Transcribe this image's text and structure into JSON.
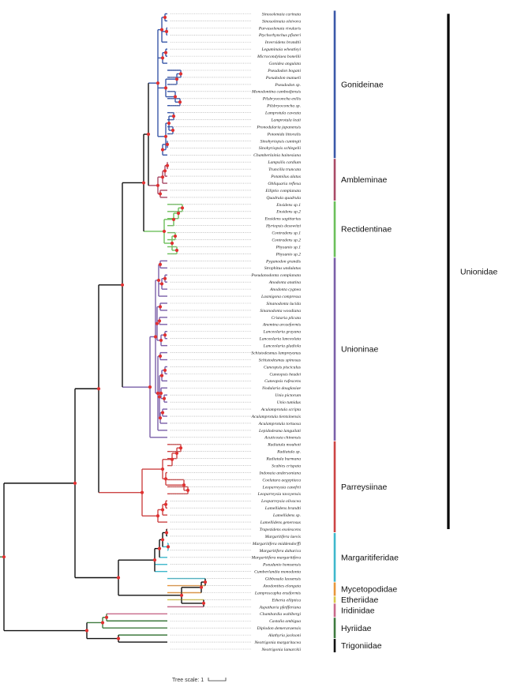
{
  "taxa": [
    {
      "name": "Sinosolenaia carinata",
      "g": "Gonideinae"
    },
    {
      "name": "Sinosolenaia oleivora",
      "g": "Gonideinae"
    },
    {
      "name": "Parvasolenaia rivularis",
      "g": "Gonideinae"
    },
    {
      "name": "Ptychorhynchus pfisteri",
      "g": "Gonideinae"
    },
    {
      "name": "Inversidens brandtii",
      "g": "Gonideinae"
    },
    {
      "name": "Leguminaia wheatleyi",
      "g": "Gonideinae"
    },
    {
      "name": "Microcondylaea bonellii",
      "g": "Gonideinae"
    },
    {
      "name": "Gonidea angulata",
      "g": "Gonideinae"
    },
    {
      "name": "Pseudodon bogani",
      "g": "Gonideinae"
    },
    {
      "name": "Pseudodon manueli",
      "g": "Gonideinae"
    },
    {
      "name": "Pseudodon sp.",
      "g": "Gonideinae"
    },
    {
      "name": "Monodontina cambodjensis",
      "g": "Gonideinae"
    },
    {
      "name": "Pilsbryoconcha exilis",
      "g": "Gonideinae"
    },
    {
      "name": "Pilsbryoconcha sp.",
      "g": "Gonideinae"
    },
    {
      "name": "Lamprotula caveata",
      "g": "Gonideinae"
    },
    {
      "name": "Lamprotula leaii",
      "g": "Gonideinae"
    },
    {
      "name": "Pronodularia japanensis",
      "g": "Gonideinae"
    },
    {
      "name": "Potomida littoralis",
      "g": "Gonideinae"
    },
    {
      "name": "Sinohyriopsis cumingii",
      "g": "Gonideinae"
    },
    {
      "name": "Sinohyriopsis schlegelii",
      "g": "Gonideinae"
    },
    {
      "name": "Chamberlainia hainesiana",
      "g": "Gonideinae"
    },
    {
      "name": "Lampsilis cardium",
      "g": "Ambleminae"
    },
    {
      "name": "Truncilla truncata",
      "g": "Ambleminae"
    },
    {
      "name": "Potamilus alatus",
      "g": "Ambleminae"
    },
    {
      "name": "Obliquaria reflexa",
      "g": "Ambleminae"
    },
    {
      "name": "Elliptio complanata",
      "g": "Ambleminae"
    },
    {
      "name": "Quadrula quadrula",
      "g": "Ambleminae"
    },
    {
      "name": "Ensidens sp.1",
      "g": "Rectidentinae"
    },
    {
      "name": "Ensidens sp.2",
      "g": "Rectidentinae"
    },
    {
      "name": "Ensidens sagittarius",
      "g": "Rectidentinae"
    },
    {
      "name": "Hyriopsis desowitzi",
      "g": "Rectidentinae"
    },
    {
      "name": "Contradens sp.1",
      "g": "Rectidentinae"
    },
    {
      "name": "Contradens sp.2",
      "g": "Rectidentinae"
    },
    {
      "name": "Physunio sp.1",
      "g": "Rectidentinae"
    },
    {
      "name": "Physunio sp.2",
      "g": "Rectidentinae"
    },
    {
      "name": "Pyganodon grandis",
      "g": "Unioninae"
    },
    {
      "name": "Strophitus undulatus",
      "g": "Unioninae"
    },
    {
      "name": "Pseudanodonta complanata",
      "g": "Unioninae"
    },
    {
      "name": "Anodonta anatina",
      "g": "Unioninae"
    },
    {
      "name": "Anodonta cygnea",
      "g": "Unioninae"
    },
    {
      "name": "Lasmigona compressa",
      "g": "Unioninae"
    },
    {
      "name": "Sinanodonta lucida",
      "g": "Unioninae"
    },
    {
      "name": "Sinanodonta woodiana",
      "g": "Unioninae"
    },
    {
      "name": "Cristaria plicata",
      "g": "Unioninae"
    },
    {
      "name": "Anemina arcaeformis",
      "g": "Unioninae"
    },
    {
      "name": "Lanceolaria grayana",
      "g": "Unioninae"
    },
    {
      "name": "Lanceolaria lanceolata",
      "g": "Unioninae"
    },
    {
      "name": "Lanceolaria gladiola",
      "g": "Unioninae"
    },
    {
      "name": "Schistodesmus lampreyanus",
      "g": "Unioninae"
    },
    {
      "name": "Schistodesmus spinosus",
      "g": "Unioninae"
    },
    {
      "name": "Cuneopsis pisciculus",
      "g": "Unioninae"
    },
    {
      "name": "Cuneopsis heudei",
      "g": "Unioninae"
    },
    {
      "name": "Cuneopsis rufescens",
      "g": "Unioninae"
    },
    {
      "name": "Nodularia douglasiae",
      "g": "Unioninae"
    },
    {
      "name": "Unio pictorum",
      "g": "Unioninae"
    },
    {
      "name": "Unio tumidus",
      "g": "Unioninae"
    },
    {
      "name": "Aculamprotula scripta",
      "g": "Unioninae"
    },
    {
      "name": "Aculamprotula tientsinensis",
      "g": "Unioninae"
    },
    {
      "name": "Aculamprotula tortuosa",
      "g": "Unioninae"
    },
    {
      "name": "Lepidodesma languilati",
      "g": "Unioninae"
    },
    {
      "name": "Acuticosta chinensis",
      "g": "Unioninae"
    },
    {
      "name": "Radiatula mouhoti",
      "g": "Parreysiinae"
    },
    {
      "name": "Radiatula sp.",
      "g": "Parreysiinae"
    },
    {
      "name": "Radiatula burmana",
      "g": "Parreysiinae"
    },
    {
      "name": "Scabies crispata",
      "g": "Parreysiinae"
    },
    {
      "name": "Indonaia andersoniana",
      "g": "Parreysiinae"
    },
    {
      "name": "Coelatura aegyptiaca",
      "g": "Parreysiinae"
    },
    {
      "name": "Leoparreysia canefrii",
      "g": "Parreysiinae"
    },
    {
      "name": "Leoparreysia tavoyensis",
      "g": "Parreysiinae"
    },
    {
      "name": "Leoparreysia olivacea",
      "g": "Parreysiinae"
    },
    {
      "name": "Lamellidens brandti",
      "g": "Parreysiinae"
    },
    {
      "name": "Lamellidens sp.",
      "g": "Parreysiinae"
    },
    {
      "name": "Lamellidens generosus",
      "g": "Parreysiinae"
    },
    {
      "name": "Trapezidens exolescens",
      "g": "Parreysiinae"
    },
    {
      "name": "Margaritifera laevis",
      "g": "Margaritiferidae"
    },
    {
      "name": "Margaritifera middendorffi",
      "g": "Margaritiferidae"
    },
    {
      "name": "Margaritifera dahurica",
      "g": "Margaritiferidae"
    },
    {
      "name": "Margaritifera margaritifera",
      "g": "Margaritiferidae"
    },
    {
      "name": "Pseudunio homsensis",
      "g": "Margaritiferidae"
    },
    {
      "name": "Cumberlandia monodonta",
      "g": "Margaritiferidae"
    },
    {
      "name": "Gibbosula laosensis",
      "g": "Margaritiferidae"
    },
    {
      "name": "Anodontites elongata",
      "g": "Mycetopodidae"
    },
    {
      "name": "Lamproscapha ensiformis",
      "g": "Mycetopodidae"
    },
    {
      "name": "Etheria elliptica",
      "g": "Etheriidae"
    },
    {
      "name": "Aspatharia pfeifferiana",
      "g": "Iridinidae"
    },
    {
      "name": "Chambardia wahlbergi",
      "g": "Iridinidae"
    },
    {
      "name": "Castalia ambigua",
      "g": "Hyriidae"
    },
    {
      "name": "Diplodon demeraraensis",
      "g": "Hyriidae"
    },
    {
      "name": "Alathyria jacksoni",
      "g": "Hyriidae"
    },
    {
      "name": "Neotrigonia margaritacea",
      "g": "Trigoniidae"
    },
    {
      "name": "Neotrigonia lamarckii",
      "g": "Trigoniidae"
    }
  ],
  "groups": [
    {
      "id": "Gonideinae",
      "label": "Gonideinae",
      "color": "#3a58a8"
    },
    {
      "id": "Ambleminae",
      "label": "Ambleminae",
      "color": "#a84a66"
    },
    {
      "id": "Rectidentinae",
      "label": "Rectidentinae",
      "color": "#6cbf5a"
    },
    {
      "id": "Unioninae",
      "label": "Unioninae",
      "color": "#7a5fa8"
    },
    {
      "id": "Parreysiinae",
      "label": "Parreysiinae",
      "color": "#cc4444"
    },
    {
      "id": "Margaritiferidae",
      "label": "Margaritiferidae",
      "color": "#3eb8cc"
    },
    {
      "id": "Mycetopodidae",
      "label": "Mycetopodidae",
      "color": "#e8953a"
    },
    {
      "id": "Etheriidae",
      "label": "Etheriidae",
      "color": "#d8c84a"
    },
    {
      "id": "Iridinidae",
      "label": "Iridinidae",
      "color": "#c86a8a"
    },
    {
      "id": "Hyriidae",
      "label": "Hyriidae",
      "color": "#3e7a3e"
    },
    {
      "id": "Trigoniidae",
      "label": "Trigoniidae",
      "color": "#111111"
    }
  ],
  "superclade": {
    "label": "Unionidae",
    "color": "#000000"
  },
  "scale": {
    "label": "Tree scale: 1"
  },
  "colors": {
    "backbone": "#111111",
    "outer": "#3e7a3e",
    "node": "#e03030",
    "dots": "#9a9a9a"
  }
}
